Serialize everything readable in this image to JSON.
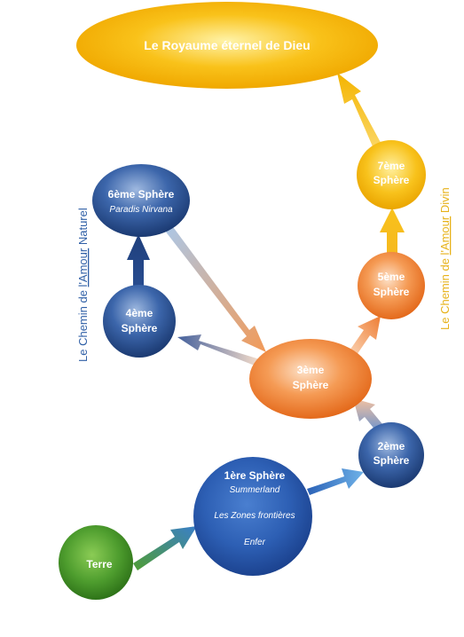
{
  "kingdom": {
    "label": "Le Royaume éternel de Dieu"
  },
  "spheres": {
    "s7": {
      "line1": "7ème",
      "line2": "Sphère"
    },
    "s6": {
      "line1": "6ème Sphère",
      "line2": "Paradis Nirvana"
    },
    "s5": {
      "line1": "5ème",
      "line2": "Sphère"
    },
    "s4": {
      "line1": "4ème",
      "line2": "Sphère"
    },
    "s3": {
      "line1": "3ème",
      "line2": "Sphère"
    },
    "s2": {
      "line1": "2ème",
      "line2": "Sphère"
    },
    "s1": {
      "line1": "1ère Sphère",
      "line2": "Summerland",
      "line3": "Les Zones frontières",
      "line4": "Enfer"
    }
  },
  "earth": {
    "label": "Terre"
  },
  "paths": {
    "natural": {
      "prefix": "Le Chemin de ",
      "accent": "l'Amour",
      "suffix": " Naturel",
      "color": "#2f5fa6"
    },
    "divine": {
      "prefix": "Le Chemin  de ",
      "accent": "l'Amour",
      "suffix": " Divin",
      "color": "#e7b21a"
    }
  },
  "colors": {
    "gold": "#f6b800",
    "orange": "#ee7b2b",
    "blue": "#2f5fa6",
    "darkblue": "#1e3f7a",
    "green": "#4a9a2d"
  }
}
